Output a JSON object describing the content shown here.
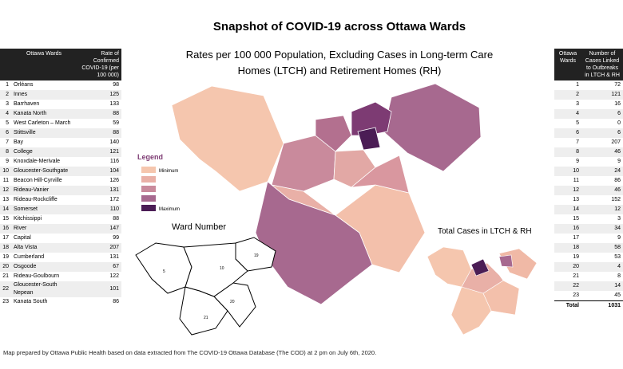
{
  "header": {
    "title": "Snapshot of COVID-19 across Ottawa Wards"
  },
  "map": {
    "title_lines": [
      "Rates per 100 000 Population, Excluding Cases in Long-term Care",
      "Homes (LTCH) and Retirement Homes (RH)"
    ],
    "legend": {
      "title": "Legend",
      "min_label": "Minimum",
      "max_label": "Maximum"
    }
  },
  "ward_map": {
    "title": "Ward Number",
    "labels": [
      "5",
      "19",
      "20",
      "21",
      "10"
    ]
  },
  "ltch_map": {
    "title": "Total Cases in LTCH & RH"
  },
  "rate_table": {
    "headers": [
      "Ottawa Wards",
      "Rate of Confirmed COVID-19 (per 100 000)"
    ],
    "rows": [
      [
        1,
        "Orléans",
        98
      ],
      [
        2,
        "Innes",
        125
      ],
      [
        3,
        "Barrhaven",
        133
      ],
      [
        4,
        "Kanata North",
        88
      ],
      [
        5,
        "West Carleton – March",
        59
      ],
      [
        6,
        "Stittsville",
        88
      ],
      [
        7,
        "Bay",
        140
      ],
      [
        8,
        "College",
        121
      ],
      [
        9,
        "Knoxdale-Merivale",
        116
      ],
      [
        10,
        "Gloucester-Southgate",
        104
      ],
      [
        11,
        "Beacon Hill-Cyrville",
        126
      ],
      [
        12,
        "Rideau-Vanier",
        131
      ],
      [
        13,
        "Rideau-Rockcliffe",
        172
      ],
      [
        14,
        "Somerset",
        110
      ],
      [
        15,
        "Kitchissippi",
        88
      ],
      [
        16,
        "River",
        147
      ],
      [
        17,
        "Capital",
        99
      ],
      [
        18,
        "Alta Vista",
        207
      ],
      [
        19,
        "Cumberland",
        131
      ],
      [
        20,
        "Osgoode",
        67
      ],
      [
        21,
        "Rideau-Goulbourn",
        122
      ],
      [
        22,
        "Gloucester-South Nepean",
        101
      ],
      [
        23,
        "Kanata South",
        86
      ]
    ]
  },
  "ltch_table": {
    "headers": [
      "Ottawa Wards",
      "Number of Cases Linked to Outbreaks in LTCH & RH"
    ],
    "rows": [
      [
        1,
        72
      ],
      [
        2,
        121
      ],
      [
        3,
        16
      ],
      [
        4,
        6
      ],
      [
        5,
        0
      ],
      [
        6,
        6
      ],
      [
        7,
        207
      ],
      [
        8,
        46
      ],
      [
        9,
        9
      ],
      [
        10,
        24
      ],
      [
        11,
        86
      ],
      [
        12,
        46
      ],
      [
        13,
        152
      ],
      [
        14,
        12
      ],
      [
        15,
        3
      ],
      [
        16,
        34
      ],
      [
        17,
        9
      ],
      [
        18,
        58
      ],
      [
        19,
        53
      ],
      [
        20,
        4
      ],
      [
        21,
        8
      ],
      [
        22,
        14
      ],
      [
        23,
        45
      ]
    ],
    "total": [
      "Total",
      1031
    ]
  },
  "footer": {
    "note": "Map prepared by Ottawa Public Health based on data extracted from The COVID-19 Ottawa Database (The COD) at 2 pm on July 6th, 2020."
  }
}
